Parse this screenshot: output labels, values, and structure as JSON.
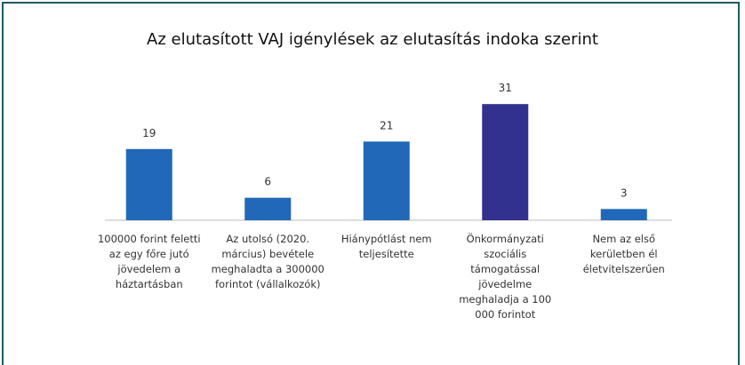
{
  "chart_data": {
    "type": "bar",
    "title": "Az elutasított VAJ igénylések az elutasítás indoka szerint",
    "categories": [
      "100000 forint feletti az egy főre jutó jövedelem a háztartásban",
      "Az utolsó (2020. március) bevétele meghaladta a 300000 forintot (vállalkozók)",
      "Hiánypótlást nem teljesítette",
      "Önkormányzati szociális támogatással jövedelme meghaladja a 100 000 forintot",
      "Nem az első kerületben él életvitelszerűen"
    ],
    "values": [
      19,
      6,
      21,
      31,
      3
    ],
    "colors": [
      "#2168b9",
      "#2168b9",
      "#2168b9",
      "#33318f",
      "#2168b9"
    ]
  }
}
